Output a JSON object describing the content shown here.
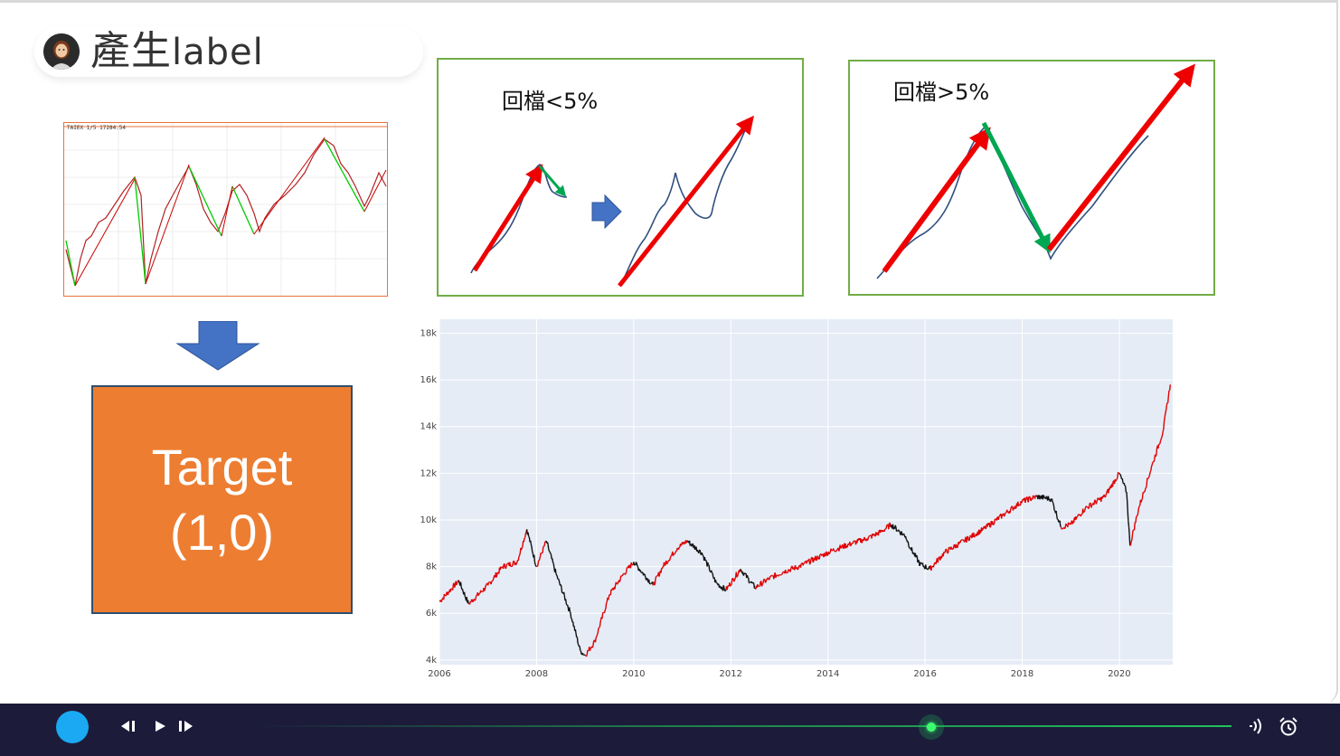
{
  "title": {
    "cjk": "產生",
    "latin": "label"
  },
  "box1": {
    "label": "回檔<5%"
  },
  "box2": {
    "label": "回檔>5%"
  },
  "target": {
    "line1": "Target",
    "line2": "(1,0)"
  },
  "thumbnail": {
    "label": "TAIEX 1/5 17284.54"
  },
  "colors": {
    "up": "#e00000",
    "down": "#00a651",
    "accent": "#ed7d31",
    "frame": "#70ad47",
    "arrow_blue": "#4472c4"
  },
  "chart_data": {
    "type": "line",
    "title": "",
    "xlabel": "",
    "ylabel": "",
    "xlim": [
      2006,
      2021.1
    ],
    "ylim": [
      3800,
      18600
    ],
    "x_ticks": [
      "2006",
      "2008",
      "2010",
      "2012",
      "2014",
      "2016",
      "2018",
      "2020"
    ],
    "y_ticks": [
      "4k",
      "6k",
      "8k",
      "10k",
      "12k",
      "14k",
      "16k",
      "18k"
    ],
    "grid": true,
    "series": [
      {
        "name": "",
        "color_scheme": "red=up, black=down",
        "x": [
          2006.0,
          2006.4,
          2006.6,
          2007.0,
          2007.3,
          2007.6,
          2007.8,
          2008.0,
          2008.2,
          2008.4,
          2008.7,
          2008.9,
          2009.0,
          2009.2,
          2009.5,
          2009.8,
          2010.0,
          2010.4,
          2010.6,
          2010.9,
          2011.1,
          2011.4,
          2011.7,
          2011.9,
          2012.2,
          2012.5,
          2012.8,
          2013.1,
          2013.4,
          2013.8,
          2014.1,
          2014.5,
          2014.8,
          2015.1,
          2015.3,
          2015.6,
          2015.7,
          2015.9,
          2016.1,
          2016.4,
          2016.8,
          2017.2,
          2017.6,
          2018.0,
          2018.3,
          2018.6,
          2018.8,
          2019.0,
          2019.3,
          2019.7,
          2020.0,
          2020.15,
          2020.22,
          2020.4,
          2020.7,
          2020.9,
          2021.05
        ],
        "y": [
          6500,
          7400,
          6400,
          7200,
          8000,
          8200,
          9600,
          8000,
          9100,
          7700,
          6000,
          4400,
          4200,
          4800,
          6800,
          7700,
          8200,
          7200,
          8000,
          8800,
          9100,
          8600,
          7300,
          7000,
          7900,
          7100,
          7500,
          7800,
          8000,
          8400,
          8700,
          9000,
          9200,
          9500,
          9800,
          9300,
          8800,
          8100,
          7900,
          8600,
          9100,
          9600,
          10200,
          10800,
          11000,
          10900,
          9700,
          9800,
          10500,
          11000,
          12000,
          11200,
          8900,
          10500,
          12500,
          13800,
          15800
        ]
      }
    ]
  },
  "player": {
    "prev": "prev-frame",
    "play": "play",
    "next": "next-frame"
  }
}
